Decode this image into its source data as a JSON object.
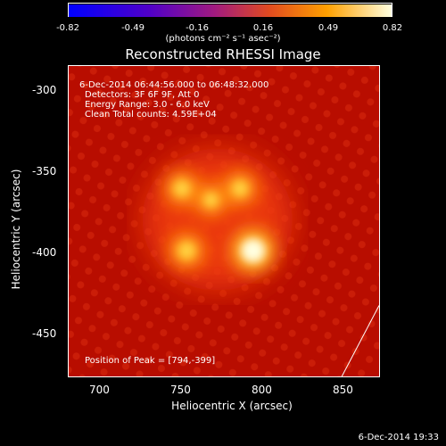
{
  "colorbar": {
    "ticks": [
      "-0.82",
      "-0.49",
      "-0.16",
      "0.16",
      "0.49",
      "0.82"
    ],
    "units": "(photons cm⁻² s⁻¹ asec⁻²)",
    "colors": [
      "#0000ff",
      "#5000c8",
      "#a01a80",
      "#e04a20",
      "#ffa000",
      "#ffffe0"
    ]
  },
  "title": "Reconstructed RHESSI Image",
  "annotations": {
    "time_range": "6-Dec-2014 06:44:56.000 to 06:48:32.000",
    "detectors": "Detectors: 3F 6F 9F, Att 0",
    "energy": "Energy Range: 3.0 - 6.0 keV",
    "method": "Clean    Total counts: 4.59E+04",
    "peak": "Position of Peak = [794,-399]"
  },
  "footer": "6-Dec-2014 19:33",
  "chart_data": {
    "type": "heatmap",
    "title": "Reconstructed RHESSI Image",
    "xlabel": "Heliocentric X (arcsec)",
    "ylabel": "Heliocentric Y (arcsec)",
    "xlim": [
      680,
      872
    ],
    "ylim": [
      -476,
      -286
    ],
    "xticks": [
      700,
      750,
      800,
      850
    ],
    "yticks": [
      -300,
      -350,
      -400,
      -450
    ],
    "colorbar_range": [
      -0.82,
      0.82
    ],
    "sources": [
      {
        "x": 794,
        "y": -399,
        "intensity": 0.82
      },
      {
        "x": 753,
        "y": -399,
        "intensity": 0.55
      },
      {
        "x": 750,
        "y": -361,
        "intensity": 0.5
      },
      {
        "x": 786,
        "y": -361,
        "intensity": 0.48
      },
      {
        "x": 768,
        "y": -368,
        "intensity": 0.42
      }
    ],
    "peak_position": [
      794,
      -399
    ]
  }
}
